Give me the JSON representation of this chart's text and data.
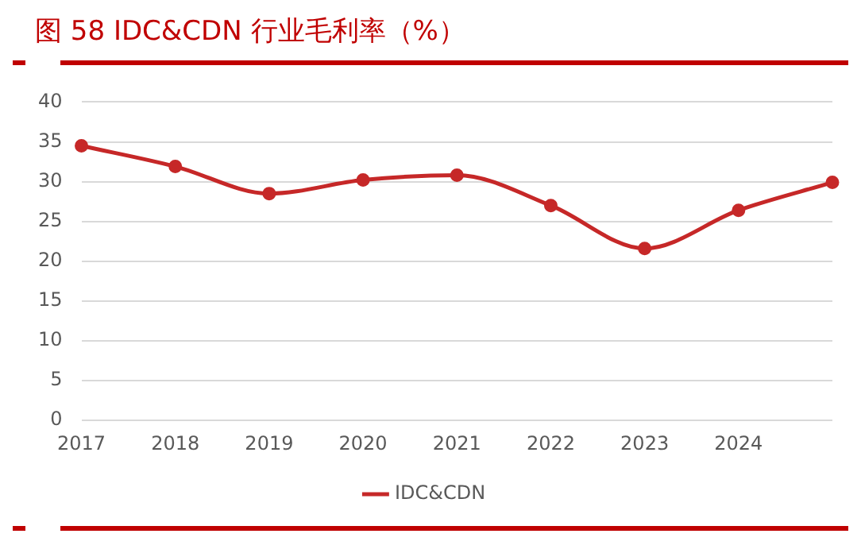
{
  "chart_data": {
    "type": "line",
    "title": "图 58   IDC&CDN 行业毛利率（%）",
    "categories": [
      "2017",
      "2018",
      "2019",
      "2020",
      "2021",
      "2022",
      "2023",
      "2024",
      null
    ],
    "series": [
      {
        "name": "IDC&CDN",
        "color": "#c62828",
        "values": [
          34.5,
          31.9,
          28.5,
          30.2,
          30.8,
          27.0,
          21.6,
          26.4,
          29.9
        ]
      }
    ],
    "ylim": [
      0,
      40
    ],
    "yticks": [
      0,
      5,
      10,
      15,
      20,
      25,
      30,
      35,
      40
    ],
    "grid": "y",
    "legend": "bottom",
    "marker": "circle",
    "line_style": "solid"
  }
}
